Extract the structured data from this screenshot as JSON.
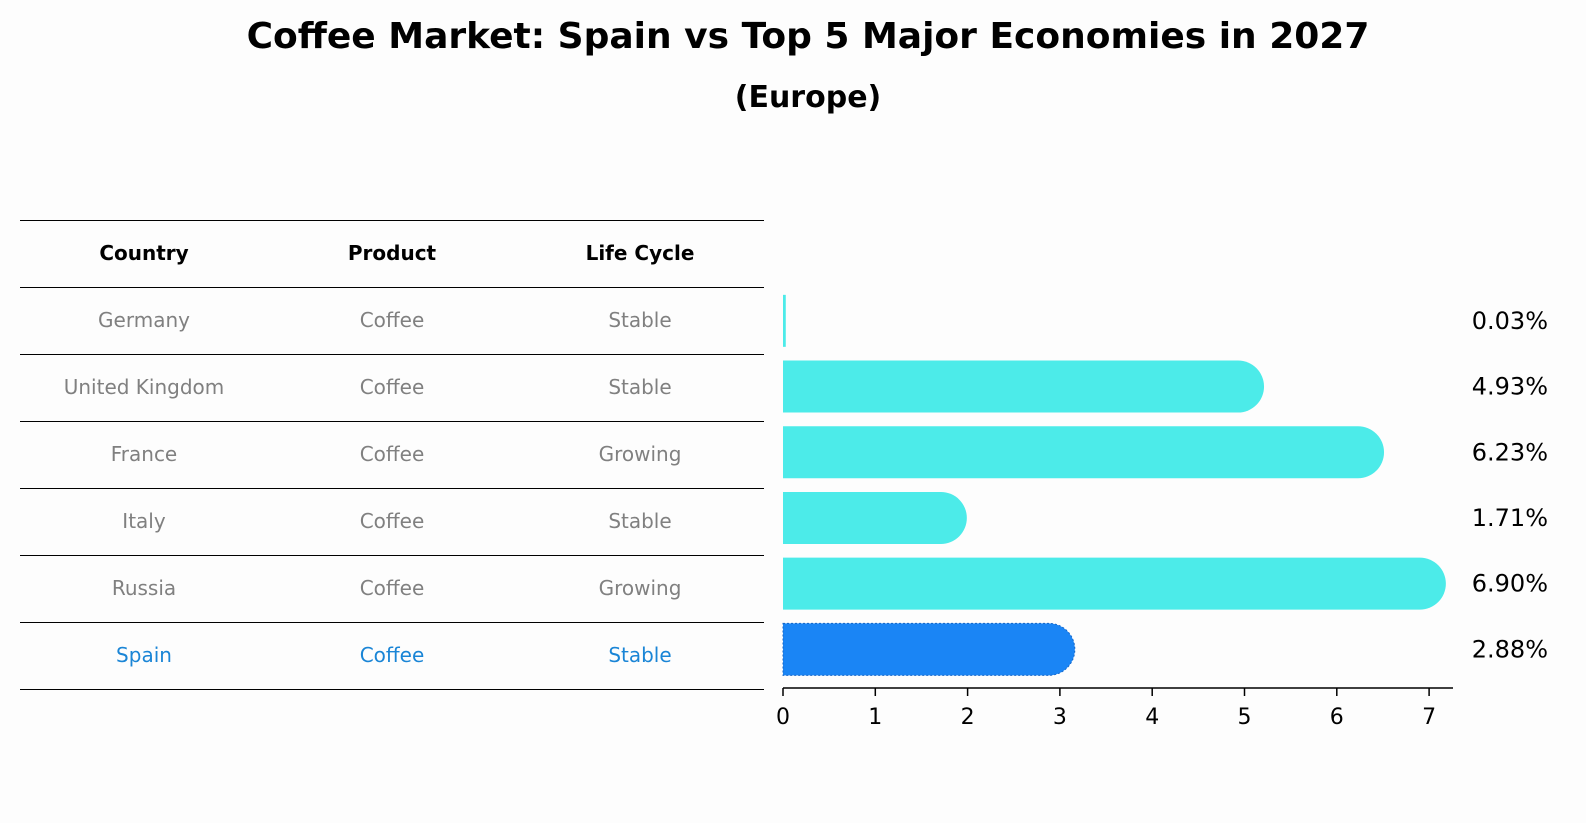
{
  "title": "Coffee Market: Spain vs Top 5 Major Economies in 2027",
  "subtitle": "(Europe)",
  "table": {
    "headers": [
      "Country",
      "Product",
      "Life Cycle"
    ],
    "rows": [
      {
        "country": "Germany",
        "product": "Coffee",
        "life_cycle": "Stable"
      },
      {
        "country": "United Kingdom",
        "product": "Coffee",
        "life_cycle": "Stable"
      },
      {
        "country": "France",
        "product": "Coffee",
        "life_cycle": "Growing"
      },
      {
        "country": "Italy",
        "product": "Coffee",
        "life_cycle": "Stable"
      },
      {
        "country": "Russia",
        "product": "Coffee",
        "life_cycle": "Growing"
      },
      {
        "country": "Spain",
        "product": "Coffee",
        "life_cycle": "Stable"
      }
    ]
  },
  "colors": {
    "bar": "#4cebe9",
    "highlight_bar": "#1a85f5",
    "highlight_text": "#1a85d6",
    "muted_text": "#808080"
  },
  "chart_data": {
    "type": "bar",
    "orientation": "horizontal",
    "categories": [
      "Germany",
      "United Kingdom",
      "France",
      "Italy",
      "Russia",
      "Spain"
    ],
    "values": [
      0.03,
      4.93,
      6.23,
      1.71,
      6.9,
      2.88
    ],
    "value_labels": [
      "0.03%",
      "4.93%",
      "6.23%",
      "1.71%",
      "6.90%",
      "2.88%"
    ],
    "highlight": "Spain",
    "xlim": [
      0,
      7.2
    ],
    "xticks": [
      0,
      1,
      2,
      3,
      4,
      5,
      6,
      7
    ],
    "grid": false
  }
}
